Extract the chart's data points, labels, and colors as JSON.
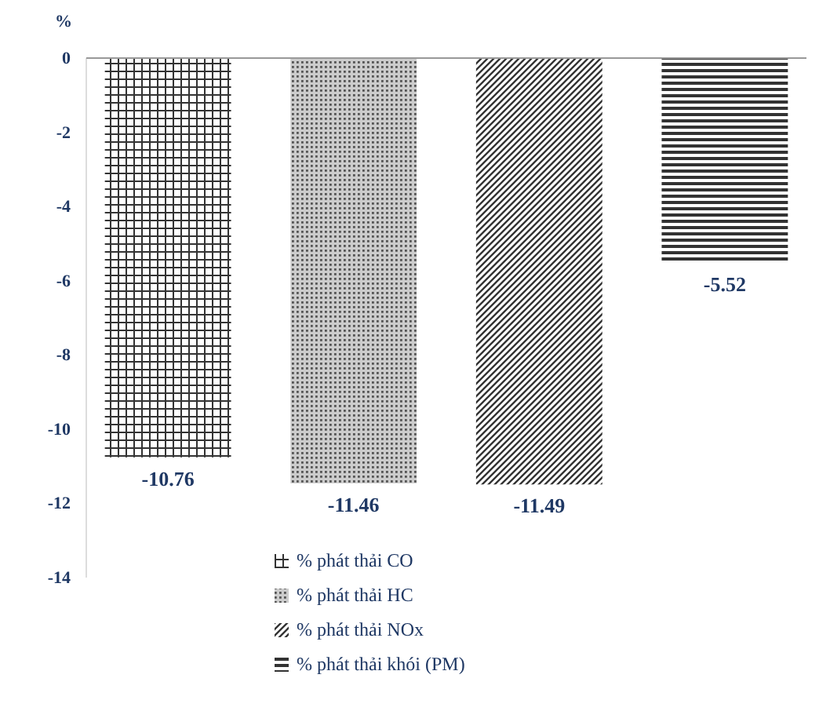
{
  "chart_data": {
    "type": "bar",
    "ylabel": "%",
    "categories": [
      null,
      null,
      null,
      null
    ],
    "series": [
      {
        "name": "% phát thải CO",
        "color": "#333333",
        "values": [
          -10.76,
          null,
          null,
          null
        ]
      },
      {
        "name": "% phát thải HC",
        "color": "#555555",
        "values": [
          null,
          -11.46,
          null,
          null
        ]
      },
      {
        "name": "% phát thải NOx",
        "color": "#333333",
        "values": [
          null,
          null,
          -11.49,
          null
        ]
      },
      {
        "name": "% phát thải khói (PM)",
        "color": "#333333",
        "values": [
          null,
          null,
          null,
          -5.52
        ]
      }
    ],
    "ylim": [
      -14,
      0
    ],
    "yticks": [
      0,
      -2,
      -4,
      -6,
      -8,
      -10,
      -12,
      -14
    ],
    "data_labels": true,
    "legend": "bottom",
    "grid": false
  }
}
